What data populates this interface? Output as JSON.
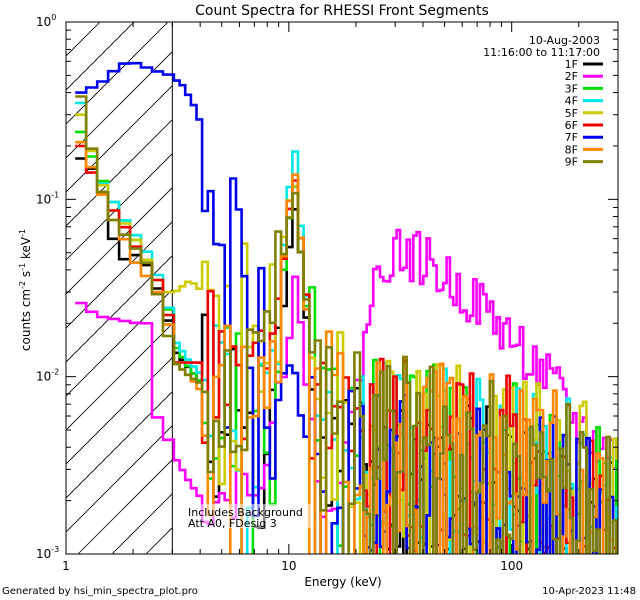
{
  "chart_data": {
    "type": "line",
    "title": "Count Spectra for RHESSI Front Segments",
    "xlabel": "Energy (keV)",
    "ylabel_main": "counts cm",
    "ylabel_exp1": "-2",
    "ylabel_mid": " s",
    "ylabel_exp2": "-1",
    "ylabel_end": " keV",
    "ylabel_exp3": "-1",
    "x_scale": "log",
    "y_scale": "log",
    "xlim": [
      1,
      300
    ],
    "ylim": [
      0.001,
      1
    ],
    "x_tick_labels": [
      {
        "value": 1,
        "label": "1"
      },
      {
        "value": 10,
        "label": "10"
      },
      {
        "value": 100,
        "label": "100"
      }
    ],
    "y_tick_labels": [
      {
        "value": 1,
        "base": "10",
        "exp": "0"
      },
      {
        "value": 0.1,
        "base": "10",
        "exp": "-1"
      },
      {
        "value": 0.01,
        "base": "10",
        "exp": "-2"
      },
      {
        "value": 0.001,
        "base": "10",
        "exp": "-3"
      }
    ],
    "date": "10-Aug-2003",
    "time_range": "11:16:00 to 11:17:00",
    "shaded_region_keV": [
      1,
      3
    ],
    "annotation_line1": "Includes Background",
    "annotation_line2": "Att A0, FDesig 3",
    "footer_left": "Generated by hsi_min_spectra_plot.pro",
    "footer_right": "10-Apr-2023 11:48",
    "series": [
      {
        "name": "1F",
        "color": "#000000",
        "seed": 11,
        "points": [
          [
            1.1,
            0.17
          ],
          [
            1.3,
            0.14
          ],
          [
            1.45,
            0.09
          ],
          [
            1.6,
            0.048
          ],
          [
            1.8,
            0.045
          ],
          [
            2.0,
            0.05
          ],
          [
            2.3,
            0.038
          ],
          [
            2.6,
            0.025
          ],
          [
            3.0,
            0.014
          ],
          [
            3.5,
            0.011
          ],
          [
            4.0,
            0.009
          ],
          [
            5.0,
            0.007
          ],
          [
            6.0,
            0.006
          ],
          [
            7.0,
            0.0045
          ],
          [
            8.0,
            0.006
          ],
          [
            9.0,
            0.018
          ],
          [
            9.8,
            0.055
          ],
          [
            10.4,
            0.09
          ],
          [
            11.0,
            0.05
          ],
          [
            12.0,
            0.014
          ],
          [
            13.5,
            0.006
          ],
          [
            16.0,
            0.004
          ],
          [
            20.0,
            0.0035
          ],
          [
            30.0,
            0.003
          ],
          [
            50.0,
            0.0028
          ],
          [
            80.0,
            0.0025
          ],
          [
            120.0,
            0.0022
          ],
          [
            200.0,
            0.0018
          ],
          [
            260.0,
            0.0015
          ]
        ]
      },
      {
        "name": "2F",
        "color": "#ff00ff",
        "seed": 22,
        "points": [
          [
            1.1,
            0.026
          ],
          [
            1.3,
            0.022
          ],
          [
            1.6,
            0.021
          ],
          [
            2.0,
            0.02
          ],
          [
            2.3,
            0.02
          ],
          [
            2.45,
            0.005
          ],
          [
            2.7,
            0.0045
          ],
          [
            3.0,
            0.0035
          ],
          [
            3.5,
            0.0025
          ],
          [
            4.0,
            0.002
          ],
          [
            5.0,
            0.002
          ],
          [
            6.0,
            0.0025
          ],
          [
            7.0,
            0.003
          ],
          [
            8.0,
            0.004
          ],
          [
            9.0,
            0.008
          ],
          [
            10.0,
            0.02
          ],
          [
            10.5,
            0.045
          ],
          [
            11.0,
            0.02
          ],
          [
            12.0,
            0.006
          ],
          [
            13.0,
            0.003
          ],
          [
            14.0,
            0.0022
          ],
          [
            16.0,
            0.0022
          ],
          [
            18.0,
            0.004
          ],
          [
            20.0,
            0.009
          ],
          [
            22.0,
            0.02
          ],
          [
            25.0,
            0.04
          ],
          [
            28.0,
            0.05
          ],
          [
            32.0,
            0.05
          ],
          [
            40.0,
            0.045
          ],
          [
            50.0,
            0.035
          ],
          [
            60.0,
            0.03
          ],
          [
            80.0,
            0.022
          ],
          [
            100.0,
            0.016
          ],
          [
            130.0,
            0.011
          ],
          [
            160.0,
            0.008
          ],
          [
            200.0,
            0.005
          ],
          [
            250.0,
            0.004
          ],
          [
            290.0,
            0.0035
          ]
        ]
      },
      {
        "name": "3F",
        "color": "#00e000",
        "seed": 33,
        "points": [
          [
            1.1,
            0.24
          ],
          [
            1.3,
            0.15
          ],
          [
            1.45,
            0.11
          ],
          [
            1.6,
            0.09
          ],
          [
            1.8,
            0.07
          ],
          [
            2.0,
            0.055
          ],
          [
            2.3,
            0.04
          ],
          [
            2.6,
            0.03
          ],
          [
            3.0,
            0.015
          ],
          [
            3.5,
            0.011
          ],
          [
            4.0,
            0.009
          ],
          [
            5.0,
            0.007
          ],
          [
            6.0,
            0.006
          ],
          [
            7.0,
            0.005
          ],
          [
            8.0,
            0.008
          ],
          [
            9.0,
            0.03
          ],
          [
            9.8,
            0.08
          ],
          [
            10.4,
            0.12
          ],
          [
            11.0,
            0.06
          ],
          [
            12.0,
            0.016
          ],
          [
            13.5,
            0.007
          ],
          [
            16.0,
            0.005
          ],
          [
            20.0,
            0.0045
          ],
          [
            30.0,
            0.004
          ],
          [
            50.0,
            0.0037
          ],
          [
            80.0,
            0.0035
          ],
          [
            120.0,
            0.003
          ],
          [
            200.0,
            0.0025
          ],
          [
            260.0,
            0.002
          ]
        ]
      },
      {
        "name": "4F",
        "color": "#00e8e8",
        "seed": 44,
        "points": [
          [
            1.1,
            0.35
          ],
          [
            1.3,
            0.14
          ],
          [
            1.45,
            0.11
          ],
          [
            1.6,
            0.09
          ],
          [
            1.8,
            0.07
          ],
          [
            2.0,
            0.06
          ],
          [
            2.3,
            0.045
          ],
          [
            2.6,
            0.03
          ],
          [
            3.0,
            0.016
          ],
          [
            3.5,
            0.012
          ],
          [
            4.0,
            0.01
          ],
          [
            5.0,
            0.008
          ],
          [
            6.0,
            0.006
          ],
          [
            7.0,
            0.005
          ],
          [
            8.0,
            0.008
          ],
          [
            9.0,
            0.04
          ],
          [
            9.8,
            0.12
          ],
          [
            10.4,
            0.19
          ],
          [
            11.0,
            0.07
          ],
          [
            12.0,
            0.018
          ],
          [
            13.5,
            0.008
          ],
          [
            16.0,
            0.005
          ],
          [
            20.0,
            0.0045
          ],
          [
            30.0,
            0.004
          ],
          [
            50.0,
            0.0035
          ],
          [
            80.0,
            0.0032
          ],
          [
            120.0,
            0.003
          ],
          [
            200.0,
            0.0025
          ],
          [
            260.0,
            0.002
          ]
        ]
      },
      {
        "name": "5F",
        "color": "#cccc00",
        "seed": 55,
        "points": [
          [
            1.1,
            0.3
          ],
          [
            1.3,
            0.15
          ],
          [
            1.45,
            0.1
          ],
          [
            1.6,
            0.08
          ],
          [
            1.8,
            0.07
          ],
          [
            2.0,
            0.055
          ],
          [
            2.3,
            0.04
          ],
          [
            2.6,
            0.03
          ],
          [
            3.0,
            0.03
          ],
          [
            3.5,
            0.035
          ],
          [
            4.0,
            0.03
          ],
          [
            4.5,
            0.025
          ],
          [
            5.0,
            0.03
          ],
          [
            6.0,
            0.025
          ],
          [
            7.0,
            0.025
          ],
          [
            8.0,
            0.03
          ],
          [
            9.0,
            0.05
          ],
          [
            9.8,
            0.1
          ],
          [
            10.4,
            0.12
          ],
          [
            11.0,
            0.06
          ],
          [
            12.0,
            0.02
          ],
          [
            13.5,
            0.008
          ],
          [
            16.0,
            0.006
          ],
          [
            20.0,
            0.005
          ],
          [
            30.0,
            0.004
          ],
          [
            50.0,
            0.0038
          ],
          [
            80.0,
            0.0034
          ],
          [
            120.0,
            0.003
          ],
          [
            200.0,
            0.0025
          ],
          [
            260.0,
            0.002
          ]
        ]
      },
      {
        "name": "6F",
        "color": "#ee0000",
        "seed": 66,
        "points": [
          [
            1.1,
            0.2
          ],
          [
            1.3,
            0.12
          ],
          [
            1.45,
            0.1
          ],
          [
            1.6,
            0.08
          ],
          [
            1.8,
            0.065
          ],
          [
            2.0,
            0.05
          ],
          [
            2.3,
            0.04
          ],
          [
            2.6,
            0.03
          ],
          [
            3.0,
            0.012
          ],
          [
            3.5,
            0.012
          ],
          [
            4.0,
            0.012
          ],
          [
            5.0,
            0.01
          ],
          [
            6.0,
            0.009
          ],
          [
            7.0,
            0.008
          ],
          [
            8.0,
            0.01
          ],
          [
            9.0,
            0.035
          ],
          [
            9.8,
            0.09
          ],
          [
            10.4,
            0.13
          ],
          [
            11.0,
            0.06
          ],
          [
            12.0,
            0.02
          ],
          [
            13.5,
            0.008
          ],
          [
            16.0,
            0.005
          ],
          [
            20.0,
            0.0045
          ],
          [
            30.0,
            0.004
          ],
          [
            50.0,
            0.0038
          ],
          [
            80.0,
            0.0034
          ],
          [
            120.0,
            0.003
          ],
          [
            200.0,
            0.0025
          ],
          [
            260.0,
            0.002
          ]
        ]
      },
      {
        "name": "7F",
        "color": "#0000ee",
        "seed": 77,
        "points": [
          [
            1.1,
            0.4
          ],
          [
            1.35,
            0.45
          ],
          [
            1.6,
            0.55
          ],
          [
            1.8,
            0.6
          ],
          [
            2.0,
            0.58
          ],
          [
            2.2,
            0.55
          ],
          [
            2.5,
            0.52
          ],
          [
            2.8,
            0.5
          ],
          [
            3.2,
            0.45
          ],
          [
            3.6,
            0.35
          ],
          [
            4.0,
            0.25
          ],
          [
            4.5,
            0.15
          ],
          [
            5.0,
            0.09
          ],
          [
            5.5,
            0.055
          ],
          [
            6.0,
            0.035
          ],
          [
            7.0,
            0.022
          ],
          [
            8.0,
            0.014
          ],
          [
            9.0,
            0.01
          ],
          [
            10.0,
            0.012
          ],
          [
            10.5,
            0.01
          ],
          [
            11.0,
            0.006
          ],
          [
            12.0,
            0.004
          ],
          [
            14.0,
            0.003
          ],
          [
            16.0,
            0.003
          ],
          [
            20.0,
            0.0028
          ],
          [
            30.0,
            0.0026
          ],
          [
            50.0,
            0.0025
          ],
          [
            80.0,
            0.0022
          ],
          [
            120.0,
            0.002
          ],
          [
            200.0,
            0.0018
          ],
          [
            260.0,
            0.0015
          ]
        ]
      },
      {
        "name": "8F",
        "color": "#ff8800",
        "seed": 88,
        "points": [
          [
            1.1,
            0.21
          ],
          [
            1.3,
            0.13
          ],
          [
            1.45,
            0.09
          ],
          [
            1.6,
            0.07
          ],
          [
            1.8,
            0.055
          ],
          [
            2.0,
            0.04
          ],
          [
            2.3,
            0.035
          ],
          [
            2.6,
            0.025
          ],
          [
            3.0,
            0.012
          ],
          [
            3.5,
            0.01
          ],
          [
            4.0,
            0.008
          ],
          [
            5.0,
            0.007
          ],
          [
            6.0,
            0.006
          ],
          [
            7.0,
            0.005
          ],
          [
            8.0,
            0.008
          ],
          [
            9.0,
            0.035
          ],
          [
            9.8,
            0.1
          ],
          [
            10.4,
            0.14
          ],
          [
            11.0,
            0.06
          ],
          [
            12.0,
            0.015
          ],
          [
            13.5,
            0.007
          ],
          [
            16.0,
            0.005
          ],
          [
            20.0,
            0.0045
          ],
          [
            30.0,
            0.004
          ],
          [
            50.0,
            0.0038
          ],
          [
            80.0,
            0.0034
          ],
          [
            120.0,
            0.003
          ],
          [
            200.0,
            0.0025
          ],
          [
            260.0,
            0.002
          ]
        ]
      },
      {
        "name": "9F",
        "color": "#808000",
        "seed": 99,
        "points": [
          [
            1.1,
            0.38
          ],
          [
            1.3,
            0.14
          ],
          [
            1.45,
            0.09
          ],
          [
            1.6,
            0.07
          ],
          [
            1.8,
            0.06
          ],
          [
            2.0,
            0.05
          ],
          [
            2.3,
            0.04
          ],
          [
            2.6,
            0.02
          ],
          [
            3.0,
            0.012
          ],
          [
            3.5,
            0.01
          ],
          [
            4.0,
            0.009
          ],
          [
            5.0,
            0.008
          ],
          [
            6.0,
            0.007
          ],
          [
            7.0,
            0.006
          ],
          [
            8.0,
            0.01
          ],
          [
            9.0,
            0.04
          ],
          [
            9.8,
            0.08
          ],
          [
            10.4,
            0.11
          ],
          [
            11.0,
            0.05
          ],
          [
            12.0,
            0.02
          ],
          [
            13.5,
            0.008
          ],
          [
            16.0,
            0.006
          ],
          [
            20.0,
            0.005
          ],
          [
            30.0,
            0.0045
          ],
          [
            50.0,
            0.004
          ],
          [
            80.0,
            0.0035
          ],
          [
            120.0,
            0.003
          ],
          [
            200.0,
            0.0025
          ],
          [
            260.0,
            0.002
          ]
        ]
      }
    ]
  }
}
